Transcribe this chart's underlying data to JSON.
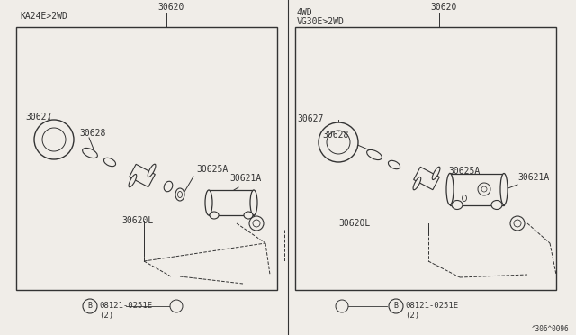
{
  "bg_color": "#f0ede8",
  "line_color": "#333333",
  "text_color": "#333333",
  "fig_width": 6.4,
  "fig_height": 3.72,
  "dpi": 100,
  "left_label": "KA24E>2WD",
  "right_label_1": "4WD",
  "right_label_2": "VG30E>2WD",
  "bottom_ref": "^306^0096"
}
